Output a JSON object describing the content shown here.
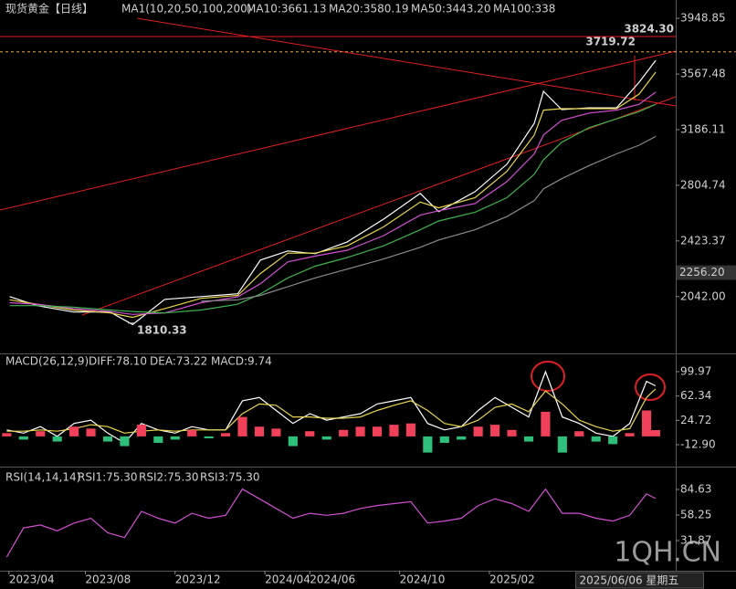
{
  "header": {
    "title": "现货黄金【日线】",
    "indicator": "MA1(10,20,50,100,200)"
  },
  "watermark": "1QH.CN",
  "chart_data": [
    {
      "type": "line",
      "title": "MA1(10,20,50,100,200)",
      "xlim": [
        3.2,
        33.3
      ],
      "ylim": [
        1665,
        4075
      ],
      "yticks": [
        3948.85,
        3567.48,
        3186.11,
        2804.74,
        2423.37,
        {
          "value": 2042,
          "label": "2042.00"
        }
      ],
      "x": [
        3.63,
        4.85,
        6.47,
        8.1,
        9.11,
        10.54,
        12.16,
        13.79,
        14.8,
        16.02,
        17.24,
        18.67,
        20.29,
        21.92,
        22.74,
        24.36,
        25.78,
        27.0,
        27.41,
        28.22,
        29.44,
        30.66,
        31.67,
        32.41
      ],
      "series": [
        {
          "name": "MA10:3661.13",
          "color": "#ffffff",
          "values": [
            2042,
            1980,
            1936,
            1936,
            1850,
            2023,
            2042,
            2061,
            2292,
            2355,
            2336,
            2417,
            2573,
            2749,
            2624,
            2761,
            2949,
            3230,
            3449,
            3324,
            3336,
            3336,
            3511,
            3661.13
          ]
        },
        {
          "name": "MA20:3580.19",
          "color": "#e8d44d",
          "values": [
            2020,
            1990,
            1950,
            1930,
            1900,
            1960,
            2030,
            2050,
            2200,
            2340,
            2340,
            2390,
            2520,
            2690,
            2650,
            2720,
            2900,
            3150,
            3320,
            3330,
            3330,
            3330,
            3430,
            3580.19
          ]
        },
        {
          "name": "MA50:3443.20",
          "color": "#d050d0",
          "values": [
            2000,
            1990,
            1960,
            1940,
            1920,
            1930,
            2000,
            2040,
            2130,
            2280,
            2320,
            2360,
            2460,
            2600,
            2630,
            2680,
            2830,
            3020,
            3150,
            3250,
            3300,
            3320,
            3360,
            3443.2
          ]
        },
        {
          "name": "MA100:338",
          "color": "#3cb44b",
          "values": [
            1980,
            1980,
            1970,
            1950,
            1940,
            1930,
            1950,
            1990,
            2060,
            2170,
            2250,
            2310,
            2390,
            2500,
            2560,
            2620,
            2720,
            2880,
            2980,
            3100,
            3200,
            3260,
            3310,
            3360
          ]
        },
        {
          "color": "#8a8a8a",
          "values": [
            null,
            null,
            null,
            null,
            null,
            null,
            2010,
            2020,
            2050,
            2110,
            2170,
            2230,
            2300,
            2380,
            2430,
            2500,
            2590,
            2700,
            2780,
            2850,
            2940,
            3020,
            3080,
            3140
          ]
        }
      ],
      "annotations": [
        {
          "value": 3824.3,
          "label": "3824.30"
        },
        {
          "value": 3719.72,
          "label": "3719.72"
        },
        {
          "value": 2256.2,
          "label": "2256.20"
        },
        {
          "value": 1810.33,
          "label": "1810.33"
        }
      ]
    },
    {
      "type": "macd",
      "title": "MACD(26,12,9)",
      "xlim": [
        3.2,
        33.3
      ],
      "ylim": [
        -45.3,
        123.9
      ],
      "yticks": [
        99.97,
        62.34,
        24.72,
        {
          "value": -12.9,
          "label": "-12.90"
        }
      ],
      "up_color": "#f0405a",
      "down_color": "#2fbf7a",
      "x": [
        3.5,
        4.25,
        5,
        5.75,
        6.5,
        7.25,
        8,
        8.75,
        9.5,
        10.25,
        11,
        11.75,
        12.5,
        13.25,
        14,
        14.75,
        15.5,
        16.25,
        17,
        17.75,
        18.5,
        19.25,
        20,
        20.75,
        21.5,
        22.25,
        23,
        23.75,
        24.5,
        25.25,
        26,
        26.75,
        27.5,
        28.25,
        29,
        29.75,
        30.5,
        31.25,
        32,
        32.4
      ],
      "series": [
        {
          "name": "DIFF:78.10",
          "color": "#ffffff",
          "values": [
            10,
            5,
            15,
            0,
            20,
            25,
            5,
            -10,
            20,
            10,
            5,
            15,
            10,
            10,
            55,
            60,
            40,
            20,
            35,
            25,
            30,
            35,
            50,
            55,
            60,
            20,
            10,
            15,
            40,
            60,
            45,
            30,
            100,
            30,
            20,
            5,
            0,
            20,
            85,
            78.1
          ]
        },
        {
          "name": "DEA:73.22",
          "color": "#e8d44d",
          "values": [
            8,
            8,
            10,
            8,
            12,
            18,
            15,
            5,
            8,
            10,
            8,
            10,
            10,
            10,
            35,
            50,
            48,
            30,
            30,
            28,
            28,
            30,
            40,
            48,
            55,
            40,
            20,
            15,
            25,
            45,
            50,
            38,
            70,
            50,
            25,
            15,
            8,
            12,
            60,
            73.22
          ]
        },
        {
          "name": "MACD:9.74",
          "color": "#d050d0",
          "bars": true,
          "values": [
            5,
            -5,
            8,
            -8,
            15,
            12,
            -8,
            -15,
            18,
            -10,
            -5,
            10,
            -3,
            5,
            30,
            15,
            12,
            -15,
            8,
            -5,
            10,
            15,
            15,
            18,
            20,
            -25,
            -10,
            -5,
            15,
            18,
            10,
            -8,
            38,
            -25,
            8,
            -8,
            -12,
            5,
            40,
            9.74
          ]
        }
      ]
    },
    {
      "type": "line",
      "title": "RSI(14,14,14)",
      "xlim": [
        3.2,
        33.3
      ],
      "ylim": [
        0.8,
        104.4
      ],
      "yticks": [
        84.63,
        58.25,
        31.87
      ],
      "xticks": [
        {
          "value": 3.6,
          "label": "2023/04"
        },
        {
          "value": 7,
          "label": "2023/08"
        },
        {
          "value": 11,
          "label": "2023/12"
        },
        {
          "value": 15,
          "label": "2024/04"
        },
        {
          "value": 17,
          "label": "2024/06"
        },
        {
          "value": 21,
          "label": "2024/10"
        },
        {
          "value": 25,
          "label": "2025/02"
        }
      ],
      "cursor": {
        "value": 29.17,
        "label": "2025/06/06 星期五"
      },
      "labels": [
        {
          "text": "RSI1:75.30",
          "color": "#ffffff"
        },
        {
          "text": "RSI2:75.30",
          "color": "#e8d44d"
        }
      ],
      "x": [
        3.5,
        4.25,
        5,
        5.75,
        6.5,
        7.25,
        8,
        8.75,
        9.5,
        10.25,
        11,
        11.75,
        12.5,
        13.25,
        14,
        14.75,
        15.5,
        16.25,
        17,
        17.75,
        18.5,
        19.25,
        20,
        20.75,
        21.5,
        22.25,
        23,
        23.75,
        24.5,
        25.25,
        26,
        26.75,
        27.5,
        28.25,
        29,
        29.75,
        30.5,
        31.25,
        32,
        32.4
      ],
      "series": [
        {
          "name": "RSI3:75.30",
          "color": "#d050d0",
          "values": [
            15,
            45,
            48,
            42,
            50,
            55,
            40,
            35,
            62,
            55,
            50,
            60,
            55,
            58,
            85,
            75,
            65,
            55,
            60,
            58,
            60,
            65,
            68,
            70,
            72,
            50,
            52,
            55,
            68,
            75,
            70,
            62,
            85,
            60,
            60,
            55,
            52,
            58,
            80,
            75.3
          ]
        }
      ]
    }
  ]
}
